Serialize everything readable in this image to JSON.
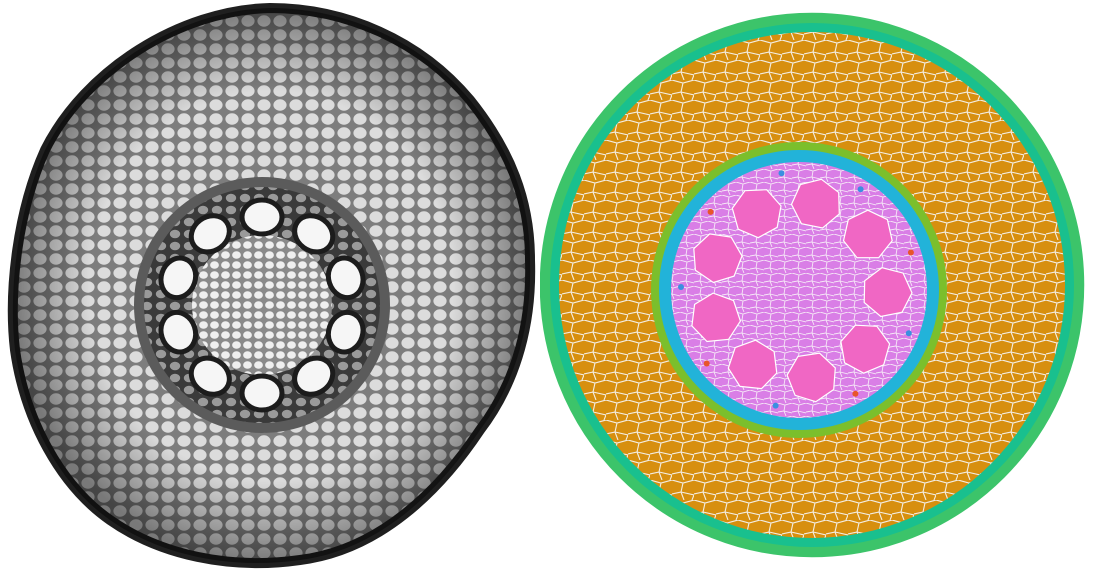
{
  "panels": [
    {
      "name": "micrograph",
      "description_style": "grayscale",
      "vascular_bundle_count": 10
    },
    {
      "name": "segmentation",
      "description_style": "color-coded",
      "vascular_bundle_count": 9
    }
  ],
  "colors": {
    "background": "#ffffff",
    "cell_wall": "#f3ede2",
    "epidermis": "#3cc46a",
    "hypodermis": "#19c08e",
    "cortex": "#d78f0f",
    "endodermis_outer": "#7bbf2c",
    "pericycle": "#22b3d9",
    "pith": "#d97ee6",
    "vascular_bundle": "#f067c4",
    "xylem_marker_red": "#e8552a",
    "xylem_marker_blue": "#3b8fe0",
    "micrograph_dark": "#2a2a2a",
    "micrograph_light": "#e6e6e6"
  }
}
